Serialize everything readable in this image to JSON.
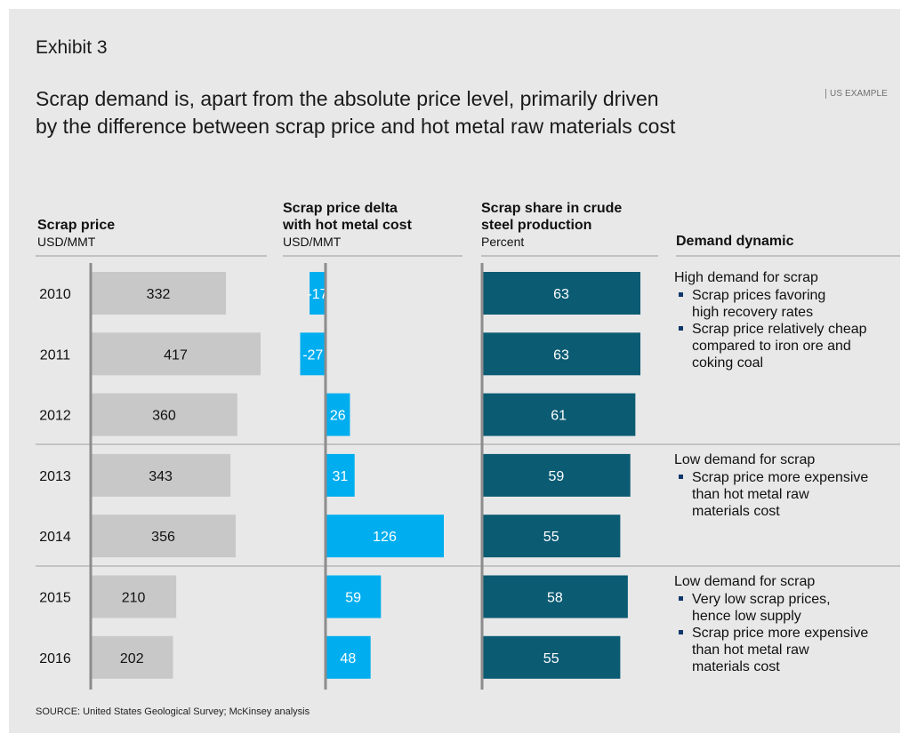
{
  "exhibit": "Exhibit 3",
  "headline": {
    "line1": "Scrap demand is, apart from the absolute price level, primarily driven",
    "line2": "by the difference between scrap price and hot metal raw materials cost"
  },
  "tag": "US EXAMPLE",
  "columns": {
    "price": {
      "title": "Scrap price",
      "unit": "USD/MMT"
    },
    "delta": {
      "title_line1": "Scrap price delta",
      "title_line2": "with hot metal cost",
      "unit": "USD/MMT"
    },
    "share": {
      "title_line1": "Scrap share in crude",
      "title_line2": "steel production",
      "unit": "Percent"
    },
    "dynamic": {
      "title": "Demand dynamic"
    }
  },
  "chart_data": {
    "type": "bar",
    "orientation": "horizontal",
    "categories": [
      "2010",
      "2011",
      "2012",
      "2013",
      "2014",
      "2015",
      "2016"
    ],
    "series": [
      {
        "name": "Scrap price",
        "values": [
          332,
          417,
          360,
          343,
          356,
          210,
          202
        ]
      },
      {
        "name": "Scrap price delta with hot metal cost",
        "values": [
          -17,
          -27,
          26,
          31,
          126,
          59,
          48
        ]
      },
      {
        "name": "Scrap share in crude steel production",
        "values": [
          63,
          63,
          61,
          59,
          55,
          58,
          55
        ]
      }
    ],
    "colors": {
      "price": "#c8c8c8",
      "delta": "#00aeef",
      "share": "#0b5b73",
      "axis": "#8c8c8c"
    }
  },
  "dynamics": [
    {
      "heading": "High demand for scrap",
      "bullets": [
        {
          "line1": "Scrap prices favoring",
          "line2": "high recovery rates"
        },
        {
          "line1": "Scrap price relatively cheap",
          "line2": "compared to iron ore and",
          "line3": "coking coal"
        }
      ]
    },
    {
      "heading": "Low demand for scrap",
      "bullets": [
        {
          "line1": "Scrap price more expensive",
          "line2": "than hot metal raw",
          "line3": "materials cost"
        }
      ]
    },
    {
      "heading": "Low demand for scrap",
      "bullets": [
        {
          "line1": "Very low scrap prices,",
          "line2": "hence low supply"
        },
        {
          "line1": "Scrap price more expensive",
          "line2": "than hot metal raw",
          "line3": "materials cost"
        }
      ]
    }
  ],
  "source": "SOURCE: United States Geological Survey; McKinsey analysis"
}
